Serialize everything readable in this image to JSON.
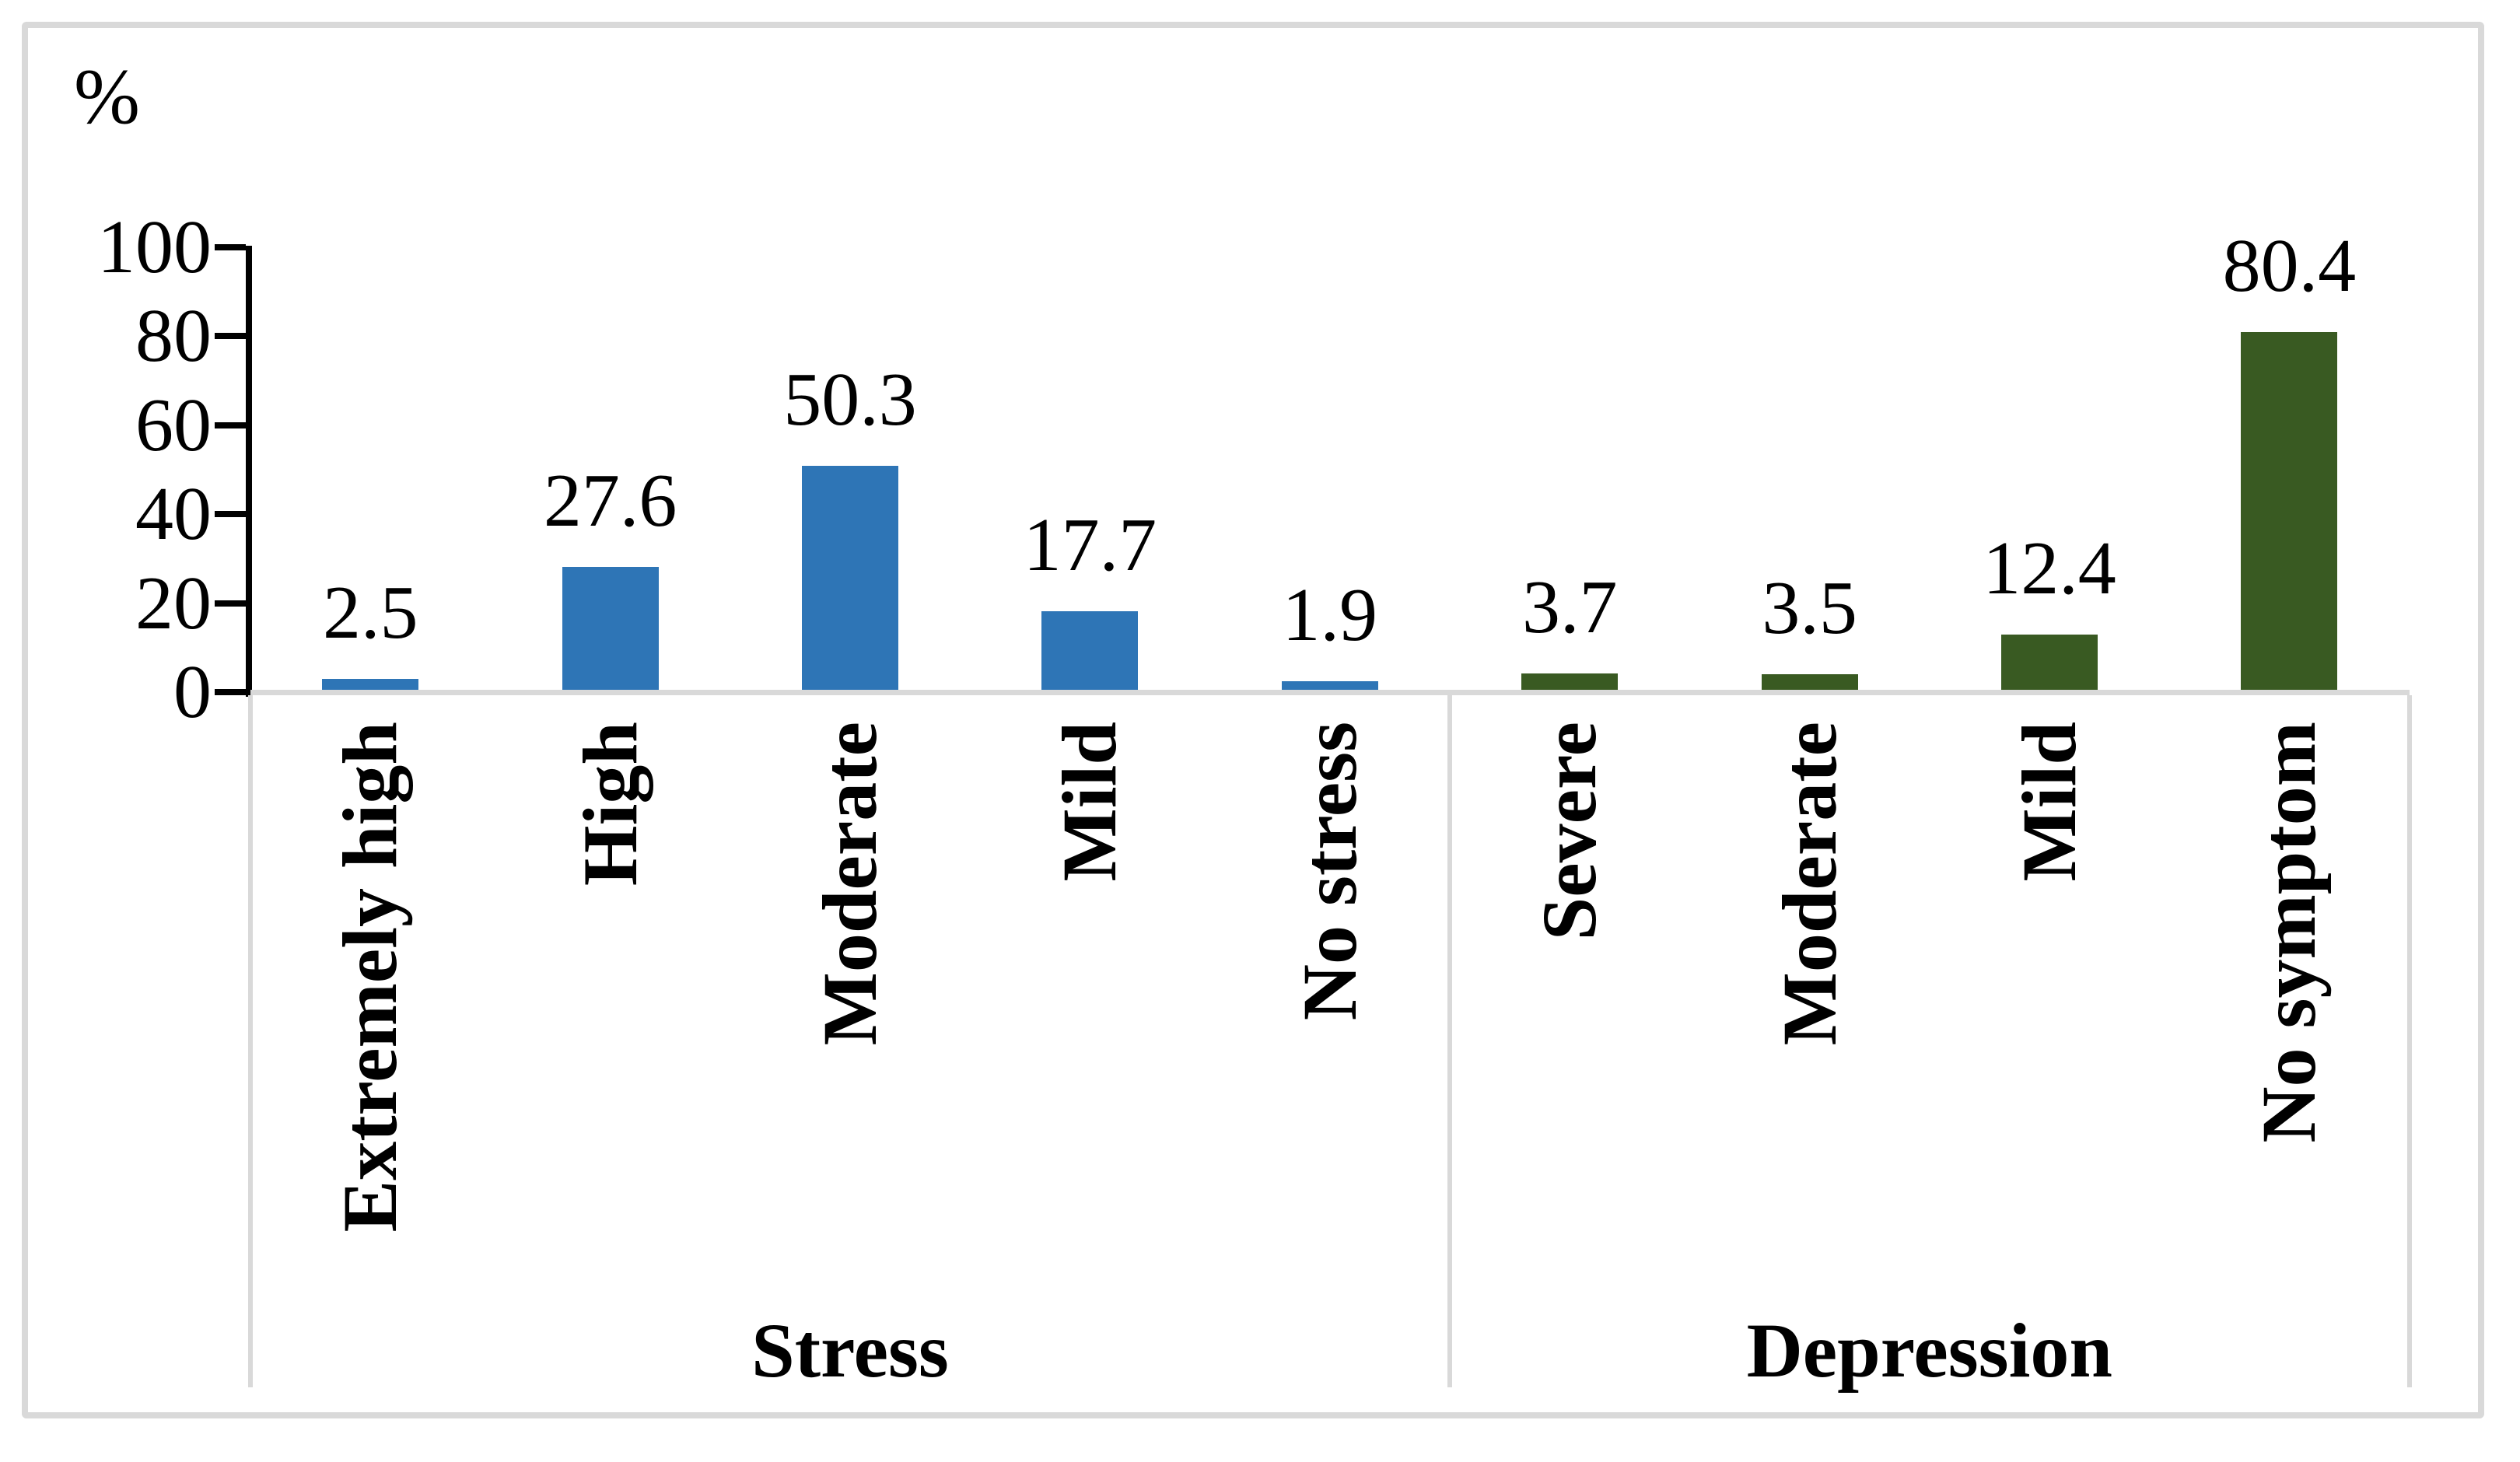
{
  "chart_data": {
    "type": "bar",
    "title": "",
    "ylabel": "%",
    "xlabel": "",
    "ylim": [
      0,
      100
    ],
    "yticks": [
      100,
      80,
      60,
      40,
      20,
      0
    ],
    "grid": false,
    "legend": null,
    "value_labels_position": "above-bars",
    "category_label_rotation": "rotated-90-ccw",
    "axis_color": "#000000",
    "divider_color": "#D9D9D9",
    "frame_color": "#D9D9D9",
    "groups": [
      {
        "label": "Stress",
        "color": "#2E75B6",
        "categories": [
          "Extremely high",
          "High",
          "Moderate",
          "Mild",
          "No stress"
        ],
        "values": [
          2.5,
          27.6,
          50.3,
          17.7,
          1.9
        ]
      },
      {
        "label": "Depression",
        "color": "#395A22",
        "categories": [
          "Severe",
          "Moderate",
          "Mild",
          "No symptom"
        ],
        "values": [
          3.7,
          3.5,
          12.4,
          80.4
        ]
      }
    ]
  }
}
